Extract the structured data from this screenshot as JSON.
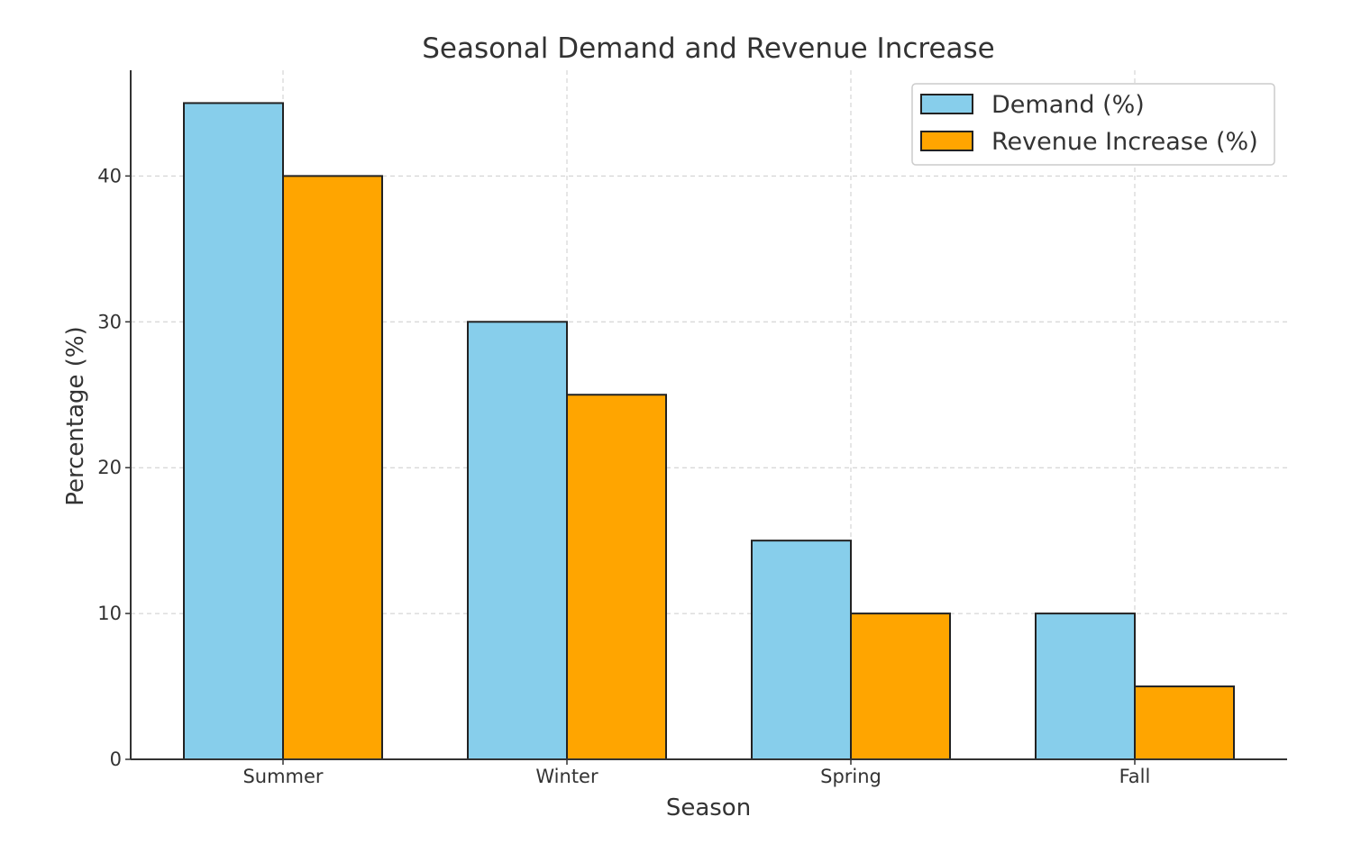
{
  "chart_data": {
    "type": "bar",
    "title": "Seasonal Demand and Revenue Increase",
    "xlabel": "Season",
    "ylabel": "Percentage (%)",
    "categories": [
      "Summer",
      "Winter",
      "Spring",
      "Fall"
    ],
    "series": [
      {
        "name": "Demand (%)",
        "values": [
          45,
          30,
          15,
          10
        ],
        "color": "#87CEEB"
      },
      {
        "name": "Revenue Increase (%)",
        "values": [
          40,
          25,
          10,
          5
        ],
        "color": "#FFA500"
      }
    ],
    "ylim": [
      0,
      47.25
    ],
    "yticks": [
      0,
      10,
      20,
      30,
      40
    ],
    "grid": true,
    "legend_position": "top-right"
  }
}
